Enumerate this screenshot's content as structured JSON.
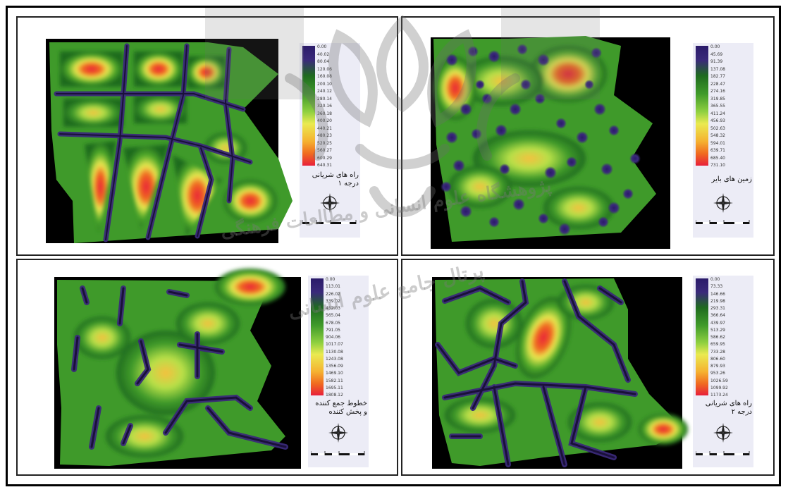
{
  "panels": [
    {
      "legend_title": "راه های شریانی\nدرجه ۱",
      "ticks": [
        "0.00",
        "40.02",
        "80.04",
        "120.06",
        "160.08",
        "200.10",
        "240.12",
        "280.14",
        "320.16",
        "360.18",
        "400.20",
        "440.21",
        "480.23",
        "520.25",
        "560.27",
        "600.29",
        "640.31"
      ]
    },
    {
      "legend_title": "زمین های بایر",
      "ticks": [
        "0.00",
        "45.69",
        "91.39",
        "137.08",
        "182.77",
        "228.47",
        "274.16",
        "319.85",
        "365.55",
        "411.24",
        "456.93",
        "502.63",
        "548.32",
        "594.01",
        "639.71",
        "685.40",
        "731.10"
      ]
    },
    {
      "legend_title": "خطوط جمع کننده\nو پخش کننده",
      "ticks": [
        "0.00",
        "113.01",
        "226.02",
        "339.02",
        "452.03",
        "565.04",
        "678.05",
        "791.05",
        "904.06",
        "1017.07",
        "1130.08",
        "1243.08",
        "1356.09",
        "1469.10",
        "1582.11",
        "1695.11",
        "1808.12"
      ]
    },
    {
      "legend_title": "راه های شریانی\nدرجه ۲",
      "ticks": [
        "0.00",
        "73.33",
        "146.66",
        "219.98",
        "293.31",
        "366.64",
        "439.97",
        "513.29",
        "586.62",
        "659.95",
        "733.28",
        "806.60",
        "879.93",
        "953.26",
        "1026.59",
        "1099.92",
        "1173.24"
      ]
    }
  ],
  "colors": {
    "background": "#000000",
    "ramp": [
      "#2b1b6a",
      "#3a2a7a",
      "#1f6b1f",
      "#3f9a2a",
      "#8fd040",
      "#eaea50",
      "#f5b030",
      "#f06a20",
      "#e8203a"
    ]
  },
  "icons": {
    "north_arrow": "compass-rose-icon",
    "watermark": "institution-logo"
  }
}
